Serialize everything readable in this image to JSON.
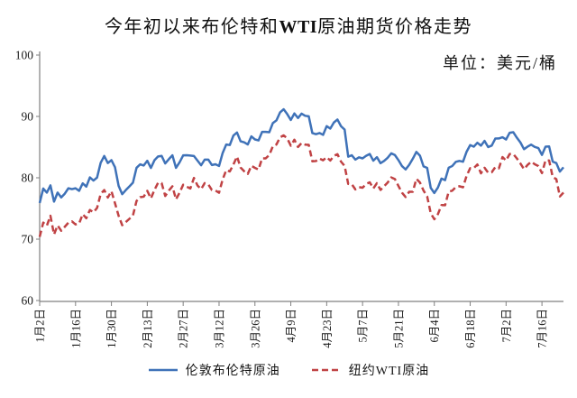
{
  "page": {
    "title_prefix": "今年初以来布伦特和",
    "title_wti": "WTI",
    "title_suffix": "原油期货价格走势",
    "unit_label": "单位：美元/桶"
  },
  "chart_data": {
    "type": "line",
    "title": "今年初以来布伦特和WTI原油期货价格走势",
    "unit": "美元/桶",
    "ylim": [
      60,
      100
    ],
    "yticks": [
      60,
      70,
      80,
      90,
      100
    ],
    "grid": false,
    "legend_position": "bottom",
    "x_tick_labels": [
      "1月2日",
      "1月16日",
      "1月30日",
      "2月13日",
      "2月27日",
      "3月12日",
      "3月26日",
      "4月9日",
      "4月23日",
      "5月7日",
      "5月21日",
      "6月4日",
      "6月18日",
      "7月2日",
      "7月16日"
    ],
    "x_tick_every_n_points": 10,
    "series": [
      {
        "name": "伦敦布伦特原油",
        "style": "solid",
        "color": "#3F72B8",
        "values": [
          75.89,
          78.25,
          77.59,
          78.76,
          76.12,
          77.59,
          76.8,
          77.41,
          78.29,
          78.15,
          78.29,
          77.88,
          79.1,
          78.56,
          80.06,
          79.55,
          80.04,
          82.43,
          83.55,
          82.4,
          82.87,
          81.71,
          78.7,
          77.33,
          77.99,
          78.59,
          79.21,
          81.63,
          82.19,
          82.0,
          82.77,
          81.6,
          82.86,
          83.47,
          83.56,
          82.34,
          83.03,
          83.67,
          81.62,
          82.53,
          83.65,
          83.68,
          83.62,
          83.55,
          82.8,
          82.04,
          82.96,
          82.96,
          82.08,
          82.21,
          81.92,
          84.03,
          85.42,
          85.34,
          86.89,
          87.38,
          85.95,
          85.78,
          85.43,
          86.75,
          86.25,
          86.09,
          87.48,
          87.48,
          87.42,
          88.92,
          89.35,
          90.65,
          91.17,
          90.38,
          89.42,
          90.48,
          89.74,
          90.45,
          90.1,
          90.02,
          87.29,
          87.11,
          87.29,
          87.0,
          88.42,
          88.02,
          89.01,
          89.5,
          88.4,
          87.86,
          83.44,
          83.67,
          82.96,
          83.33,
          83.16,
          83.58,
          83.88,
          82.79,
          83.36,
          82.38,
          82.75,
          83.27,
          83.98,
          83.71,
          82.88,
          81.9,
          81.36,
          82.12,
          83.1,
          84.22,
          83.6,
          81.86,
          81.62,
          78.36,
          77.52,
          78.41,
          79.87,
          79.62,
          81.63,
          81.92,
          82.6,
          82.75,
          82.62,
          84.25,
          85.33,
          85.07,
          85.71,
          85.24,
          86.01,
          85.01,
          85.25,
          86.39,
          86.41,
          86.6,
          86.24,
          87.34,
          87.43,
          86.54,
          85.75,
          84.66,
          85.08,
          85.4,
          85.03,
          84.85,
          83.73,
          85.08,
          85.11,
          82.63,
          82.4,
          81.01,
          81.71
        ]
      },
      {
        "name": "纽约WTI原油",
        "style": "dashed",
        "color": "#C04244",
        "values": [
          70.38,
          72.7,
          72.19,
          73.81,
          70.77,
          72.24,
          71.37,
          72.02,
          72.68,
          72.9,
          72.4,
          72.56,
          74.08,
          73.41,
          74.76,
          74.37,
          75.09,
          77.36,
          78.01,
          76.78,
          77.82,
          75.85,
          73.82,
          72.28,
          72.78,
          73.31,
          73.86,
          76.22,
          76.84,
          76.92,
          77.87,
          76.64,
          78.03,
          79.19,
          79.13,
          77.04,
          77.91,
          78.61,
          76.49,
          77.58,
          78.87,
          78.54,
          78.26,
          79.97,
          78.74,
          78.15,
          79.13,
          78.93,
          78.01,
          77.93,
          77.56,
          79.72,
          81.26,
          81.04,
          82.16,
          83.47,
          81.68,
          81.07,
          80.63,
          81.95,
          81.62,
          81.35,
          83.17,
          83.17,
          83.71,
          85.15,
          85.43,
          86.59,
          86.91,
          86.43,
          85.23,
          86.21,
          85.02,
          85.66,
          85.41,
          85.36,
          82.69,
          82.73,
          83.14,
          82.85,
          83.36,
          82.81,
          83.57,
          83.85,
          82.63,
          81.93,
          79.0,
          78.95,
          78.11,
          78.48,
          78.38,
          78.99,
          79.26,
          78.26,
          79.12,
          78.02,
          78.63,
          79.23,
          80.06,
          79.8,
          78.66,
          77.57,
          76.87,
          77.72,
          77.72,
          79.83,
          79.23,
          77.91,
          76.99,
          74.22,
          73.25,
          74.07,
          75.55,
          75.53,
          77.74,
          77.9,
          78.5,
          78.62,
          78.45,
          80.33,
          81.57,
          81.57,
          82.17,
          80.73,
          81.63,
          80.83,
          80.9,
          81.74,
          81.54,
          83.38,
          82.81,
          83.88,
          83.88,
          83.16,
          82.33,
          81.41,
          82.1,
          82.62,
          82.21,
          81.91,
          80.76,
          82.85,
          82.82,
          80.13,
          79.78,
          76.96,
          77.59
        ]
      }
    ]
  }
}
